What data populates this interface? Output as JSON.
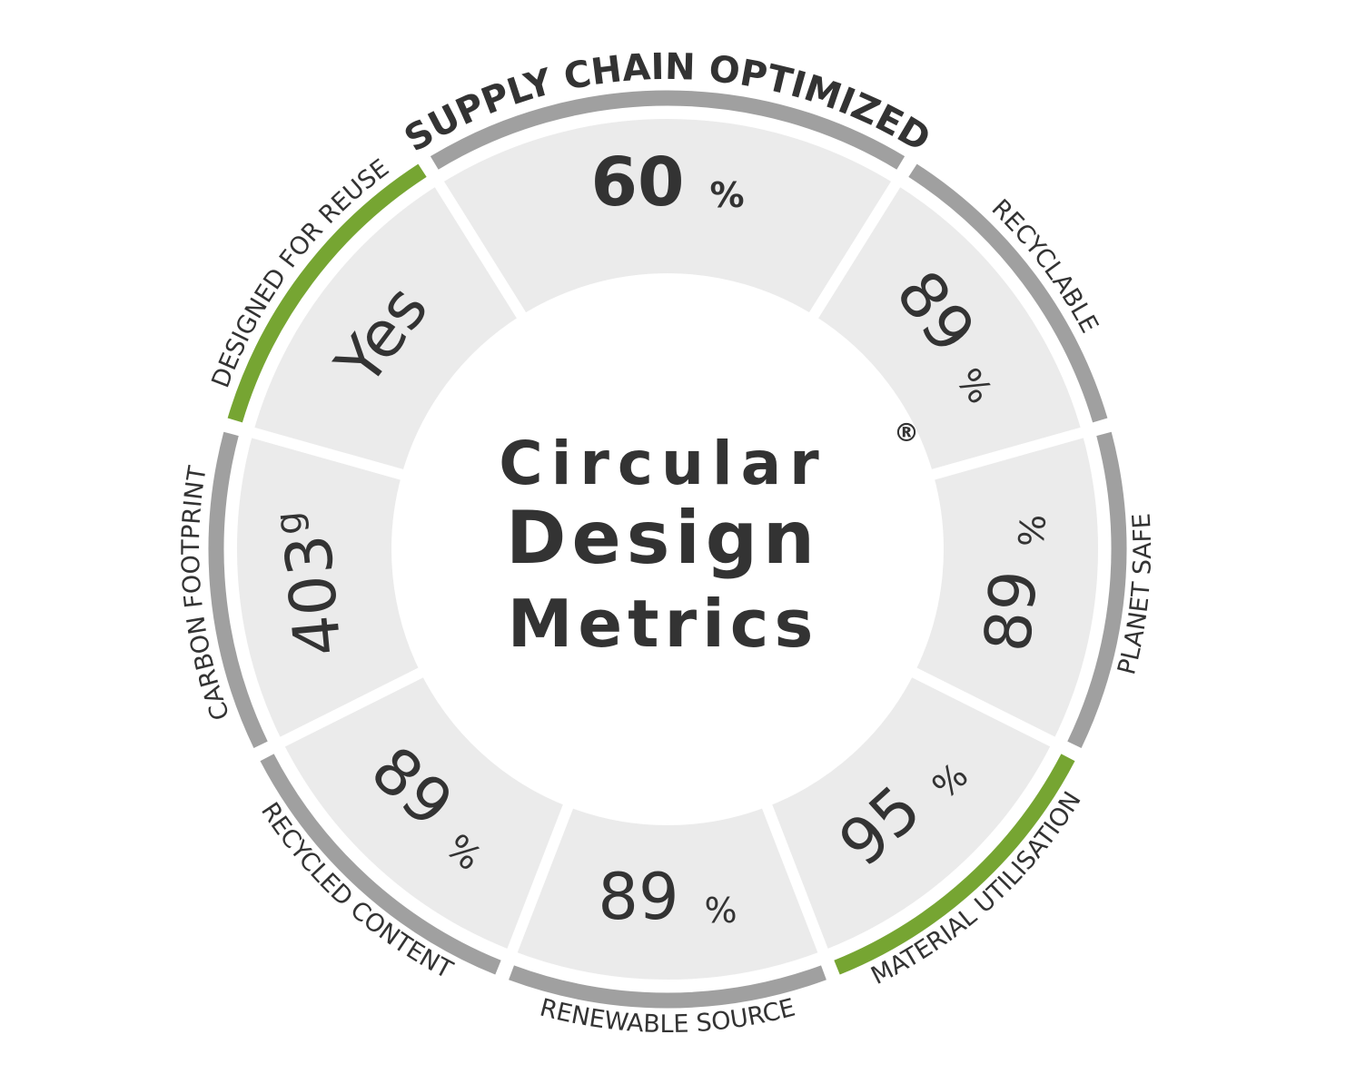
{
  "center_title": {
    "lines": [
      "Circular",
      "Design",
      "Metrics"
    ],
    "mark": "®"
  },
  "segments": [
    {
      "label": "SUPPLY CHAIN OPTIMIZED",
      "value": "60",
      "unit": "%",
      "ring_color": "#a0a0a0"
    },
    {
      "label": "RECYCLABLE",
      "value": "89",
      "unit": "%",
      "ring_color": "#a0a0a0"
    },
    {
      "label": "PLANET SAFE",
      "value": "89",
      "unit": "%",
      "ring_color": "#a0a0a0"
    },
    {
      "label": "MATERIAL UTILISATION",
      "value": "95",
      "unit": "%",
      "ring_color": "#76a532"
    },
    {
      "label": "RENEWABLE SOURCE",
      "value": "89",
      "unit": "%",
      "ring_color": "#a0a0a0"
    },
    {
      "label": "RECYCLED CONTENT",
      "value": "89",
      "unit": "%",
      "ring_color": "#a0a0a0"
    },
    {
      "label": "CARBON FOOTPRINT",
      "value": "403",
      "unit": "g",
      "ring_color": "#a0a0a0"
    },
    {
      "label": "DESIGNED FOR REUSE",
      "value": "Yes",
      "unit": null,
      "ring_color": "#76a532"
    }
  ]
}
